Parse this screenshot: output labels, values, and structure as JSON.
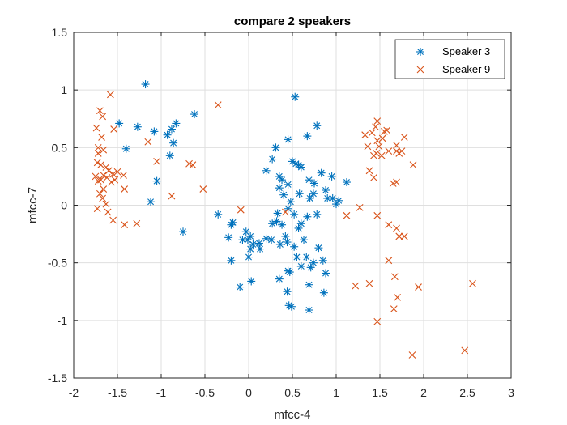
{
  "chart_data": {
    "type": "scatter",
    "title": "compare 2 speakers",
    "xlabel": "mfcc-4",
    "ylabel": "mfcc-7",
    "xlim": [
      -2,
      3
    ],
    "ylim": [
      -1.5,
      1.5
    ],
    "xticks": [
      "-2",
      "-1.5",
      "-1",
      "-0.5",
      "0",
      "0.5",
      "1",
      "1.5",
      "2",
      "2.5",
      "3"
    ],
    "yticks": [
      "-1.5",
      "-1",
      "-0.5",
      "0",
      "0.5",
      "1",
      "1.5"
    ],
    "grid": true,
    "legend_position": "top-right",
    "series": [
      {
        "name": "Speaker 3",
        "marker": "asterisk",
        "color": "#0072BD",
        "points": [
          [
            -1.18,
            1.05
          ],
          [
            -1.48,
            0.71
          ],
          [
            -1.4,
            0.49
          ],
          [
            -1.27,
            0.68
          ],
          [
            -1.08,
            0.64
          ],
          [
            -0.93,
            0.61
          ],
          [
            -0.9,
            0.43
          ],
          [
            -0.88,
            0.66
          ],
          [
            -0.83,
            0.71
          ],
          [
            -0.86,
            0.54
          ],
          [
            -0.62,
            0.79
          ],
          [
            -1.05,
            0.21
          ],
          [
            -1.12,
            0.03
          ],
          [
            -0.75,
            -0.23
          ],
          [
            0.53,
            0.94
          ],
          [
            0.78,
            0.69
          ],
          [
            0.67,
            0.6
          ],
          [
            0.45,
            0.57
          ],
          [
            0.31,
            0.5
          ],
          [
            0.5,
            0.38
          ],
          [
            0.27,
            0.4
          ],
          [
            0.57,
            0.35
          ],
          [
            0.6,
            0.33
          ],
          [
            0.54,
            0.36
          ],
          [
            0.69,
            0.22
          ],
          [
            0.75,
            0.19
          ],
          [
            0.83,
            0.28
          ],
          [
            0.95,
            0.25
          ],
          [
            0.2,
            0.3
          ],
          [
            0.35,
            0.25
          ],
          [
            0.38,
            0.22
          ],
          [
            0.35,
            0.15
          ],
          [
            0.45,
            0.18
          ],
          [
            0.4,
            0.09
          ],
          [
            0.48,
            0.03
          ],
          [
            0.58,
            0.1
          ],
          [
            0.7,
            0.06
          ],
          [
            0.74,
            0.1
          ],
          [
            0.88,
            0.13
          ],
          [
            0.9,
            0.06
          ],
          [
            0.96,
            0.06
          ],
          [
            1.0,
            0.01
          ],
          [
            1.03,
            0.04
          ],
          [
            1.12,
            0.2
          ],
          [
            0.33,
            -0.07
          ],
          [
            0.45,
            -0.03
          ],
          [
            0.52,
            -0.08
          ],
          [
            0.27,
            -0.16
          ],
          [
            0.32,
            -0.14
          ],
          [
            0.38,
            -0.17
          ],
          [
            0.42,
            -0.27
          ],
          [
            0.57,
            -0.2
          ],
          [
            0.6,
            -0.16
          ],
          [
            0.67,
            -0.1
          ],
          [
            0.78,
            -0.08
          ],
          [
            -0.35,
            -0.08
          ],
          [
            -0.18,
            -0.15
          ],
          [
            -0.2,
            -0.17
          ],
          [
            -0.23,
            -0.28
          ],
          [
            -0.07,
            -0.3
          ],
          [
            -0.03,
            -0.23
          ],
          [
            -0.01,
            -0.3
          ],
          [
            0.02,
            -0.27
          ],
          [
            0.05,
            -0.34
          ],
          [
            0.12,
            -0.33
          ],
          [
            0.13,
            -0.38
          ],
          [
            0.2,
            -0.29
          ],
          [
            0.26,
            -0.3
          ],
          [
            0.36,
            -0.34
          ],
          [
            0.44,
            -0.32
          ],
          [
            0.52,
            -0.36
          ],
          [
            0.63,
            -0.3
          ],
          [
            0.66,
            -0.45
          ],
          [
            0.74,
            -0.5
          ],
          [
            0.8,
            -0.37
          ],
          [
            0.85,
            -0.48
          ],
          [
            0.88,
            -0.59
          ],
          [
            -0.2,
            -0.48
          ],
          [
            0.0,
            -0.45
          ],
          [
            0.02,
            -0.38
          ],
          [
            0.55,
            -0.45
          ],
          [
            0.45,
            -0.57
          ],
          [
            0.6,
            -0.53
          ],
          [
            0.71,
            -0.54
          ],
          [
            0.03,
            -0.66
          ],
          [
            -0.1,
            -0.71
          ],
          [
            0.35,
            -0.64
          ],
          [
            0.47,
            -0.58
          ],
          [
            0.44,
            -0.75
          ],
          [
            0.69,
            -0.69
          ],
          [
            0.86,
            -0.76
          ],
          [
            0.46,
            -0.87
          ],
          [
            0.49,
            -0.88
          ],
          [
            0.69,
            -0.91
          ]
        ]
      },
      {
        "name": "Speaker 9",
        "marker": "x",
        "color": "#D95319",
        "points": [
          [
            -1.58,
            0.96
          ],
          [
            -1.7,
            0.82
          ],
          [
            -1.67,
            0.77
          ],
          [
            -1.74,
            0.67
          ],
          [
            -1.68,
            0.59
          ],
          [
            -1.15,
            0.55
          ],
          [
            -1.72,
            0.5
          ],
          [
            -1.66,
            0.48
          ],
          [
            -1.72,
            0.45
          ],
          [
            -1.73,
            0.37
          ],
          [
            -1.69,
            0.35
          ],
          [
            -1.63,
            0.33
          ],
          [
            -1.6,
            0.3
          ],
          [
            -1.55,
            0.27
          ],
          [
            -1.5,
            0.29
          ],
          [
            -1.53,
            0.22
          ],
          [
            -1.57,
            0.2
          ],
          [
            -1.62,
            0.24
          ],
          [
            -1.66,
            0.26
          ],
          [
            -1.69,
            0.22
          ],
          [
            -1.72,
            0.21
          ],
          [
            -1.75,
            0.25
          ],
          [
            -1.43,
            0.26
          ],
          [
            -1.54,
            0.66
          ],
          [
            -1.66,
            0.14
          ],
          [
            -1.7,
            0.1
          ],
          [
            -1.67,
            0.06
          ],
          [
            -1.63,
            0.01
          ],
          [
            -1.61,
            -0.06
          ],
          [
            -1.73,
            -0.03
          ],
          [
            -1.55,
            -0.13
          ],
          [
            -1.42,
            -0.17
          ],
          [
            -1.42,
            0.14
          ],
          [
            -1.28,
            -0.16
          ],
          [
            -1.05,
            0.38
          ],
          [
            -0.88,
            0.08
          ],
          [
            -0.68,
            0.36
          ],
          [
            -0.64,
            0.35
          ],
          [
            -0.52,
            0.14
          ],
          [
            -0.35,
            0.87
          ],
          [
            -0.09,
            -0.04
          ],
          [
            0.42,
            -0.06
          ],
          [
            1.47,
            0.73
          ],
          [
            1.45,
            0.68
          ],
          [
            1.41,
            0.63
          ],
          [
            1.47,
            0.56
          ],
          [
            1.55,
            0.64
          ],
          [
            1.58,
            0.65
          ],
          [
            1.53,
            0.58
          ],
          [
            1.49,
            0.51
          ],
          [
            1.46,
            0.45
          ],
          [
            1.52,
            0.43
          ],
          [
            1.43,
            0.43
          ],
          [
            1.36,
            0.51
          ],
          [
            1.33,
            0.61
          ],
          [
            1.6,
            0.47
          ],
          [
            1.69,
            0.47
          ],
          [
            1.72,
            0.45
          ],
          [
            1.75,
            0.47
          ],
          [
            1.78,
            0.59
          ],
          [
            1.69,
            0.52
          ],
          [
            1.38,
            0.3
          ],
          [
            1.43,
            0.24
          ],
          [
            1.65,
            0.19
          ],
          [
            1.69,
            0.2
          ],
          [
            1.88,
            0.35
          ],
          [
            1.12,
            -0.09
          ],
          [
            1.27,
            -0.02
          ],
          [
            1.47,
            -0.09
          ],
          [
            1.6,
            -0.17
          ],
          [
            1.69,
            -0.2
          ],
          [
            1.72,
            -0.27
          ],
          [
            1.78,
            -0.27
          ],
          [
            1.6,
            -0.48
          ],
          [
            1.67,
            -0.62
          ],
          [
            1.94,
            -0.71
          ],
          [
            1.38,
            -0.68
          ],
          [
            1.22,
            -0.7
          ],
          [
            1.7,
            -0.8
          ],
          [
            1.66,
            -0.9
          ],
          [
            1.47,
            -1.01
          ],
          [
            1.87,
            -1.3
          ],
          [
            2.47,
            -1.26
          ],
          [
            2.56,
            -0.68
          ]
        ]
      }
    ]
  }
}
